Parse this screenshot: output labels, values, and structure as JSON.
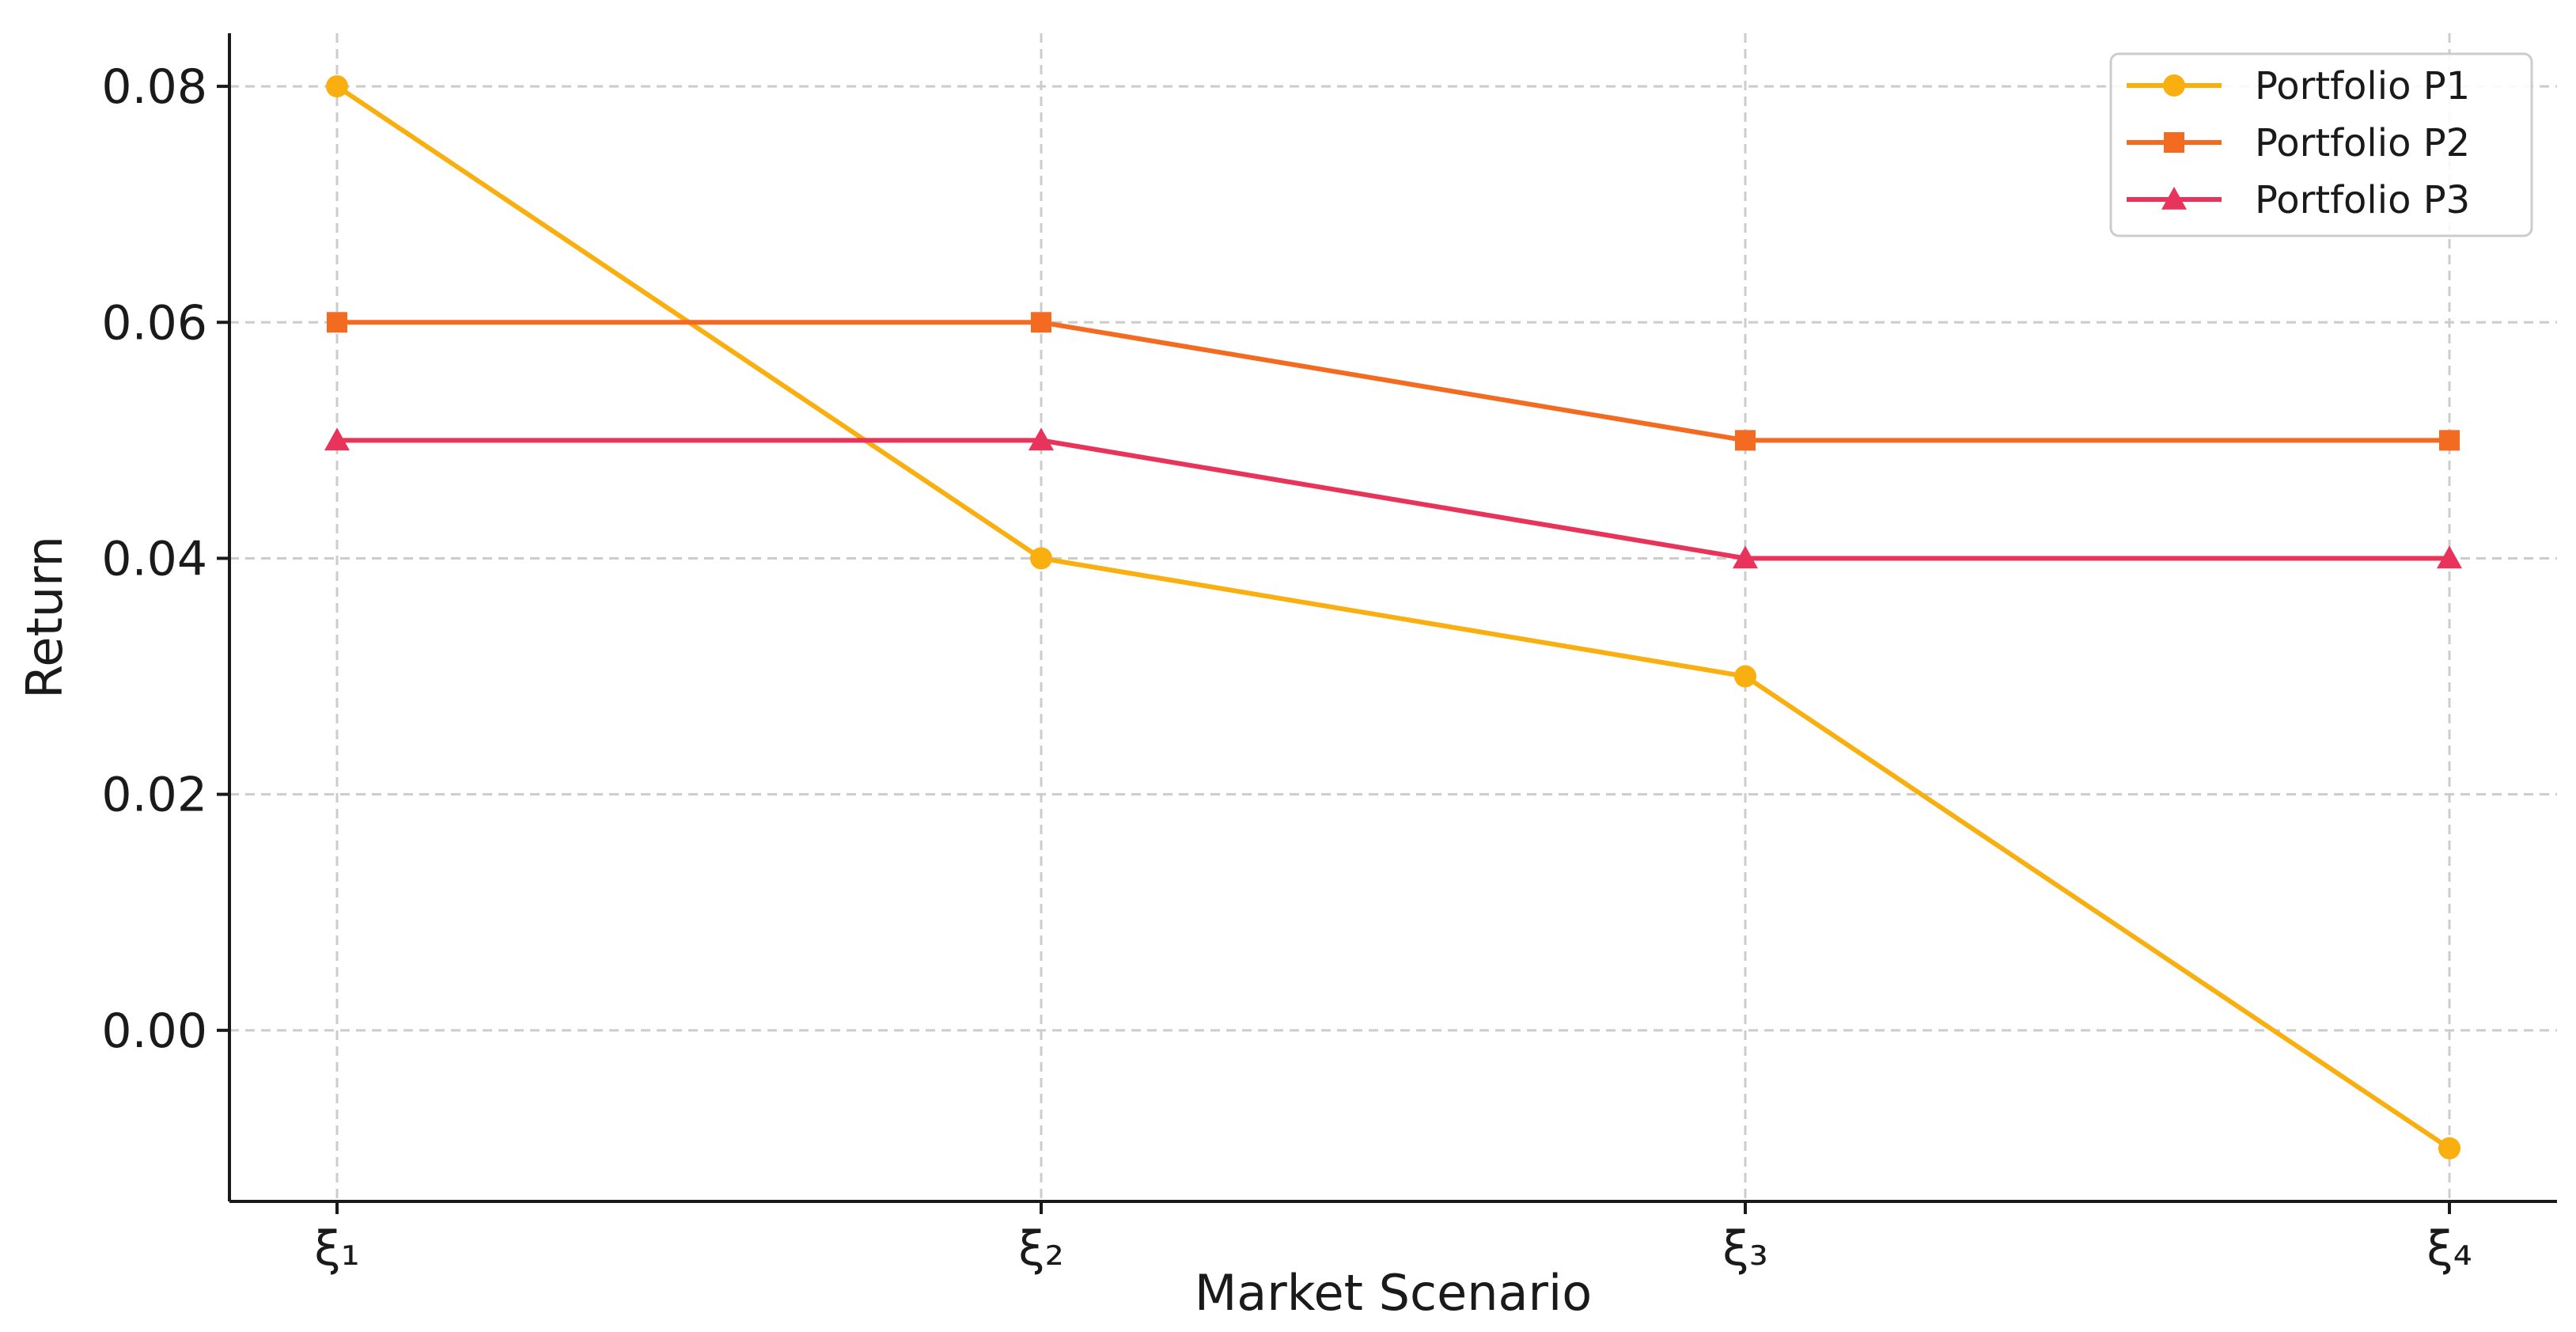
{
  "chart_data": {
    "type": "line",
    "title": "",
    "xlabel": "Market Scenario",
    "ylabel": "Return",
    "categories": [
      "ξ₁",
      "ξ₂",
      "ξ₃",
      "ξ₄"
    ],
    "yticks": [
      "0.00",
      "0.02",
      "0.04",
      "0.06",
      "0.08"
    ],
    "ytick_values": [
      0.0,
      0.02,
      0.04,
      0.06,
      0.08
    ],
    "ylim": [
      -0.0145,
      0.0845
    ],
    "grid": true,
    "legend_position": "top-right",
    "series": [
      {
        "name": "Portfolio P1",
        "values": [
          0.08,
          0.04,
          0.03,
          -0.01
        ],
        "color": "#F9AF0F",
        "marker": "circle"
      },
      {
        "name": "Portfolio P2",
        "values": [
          0.06,
          0.06,
          0.05,
          0.05
        ],
        "color": "#F36B21",
        "marker": "square"
      },
      {
        "name": "Portfolio P3",
        "values": [
          0.05,
          0.05,
          0.04,
          0.04
        ],
        "color": "#E8335A",
        "marker": "triangle"
      }
    ]
  }
}
